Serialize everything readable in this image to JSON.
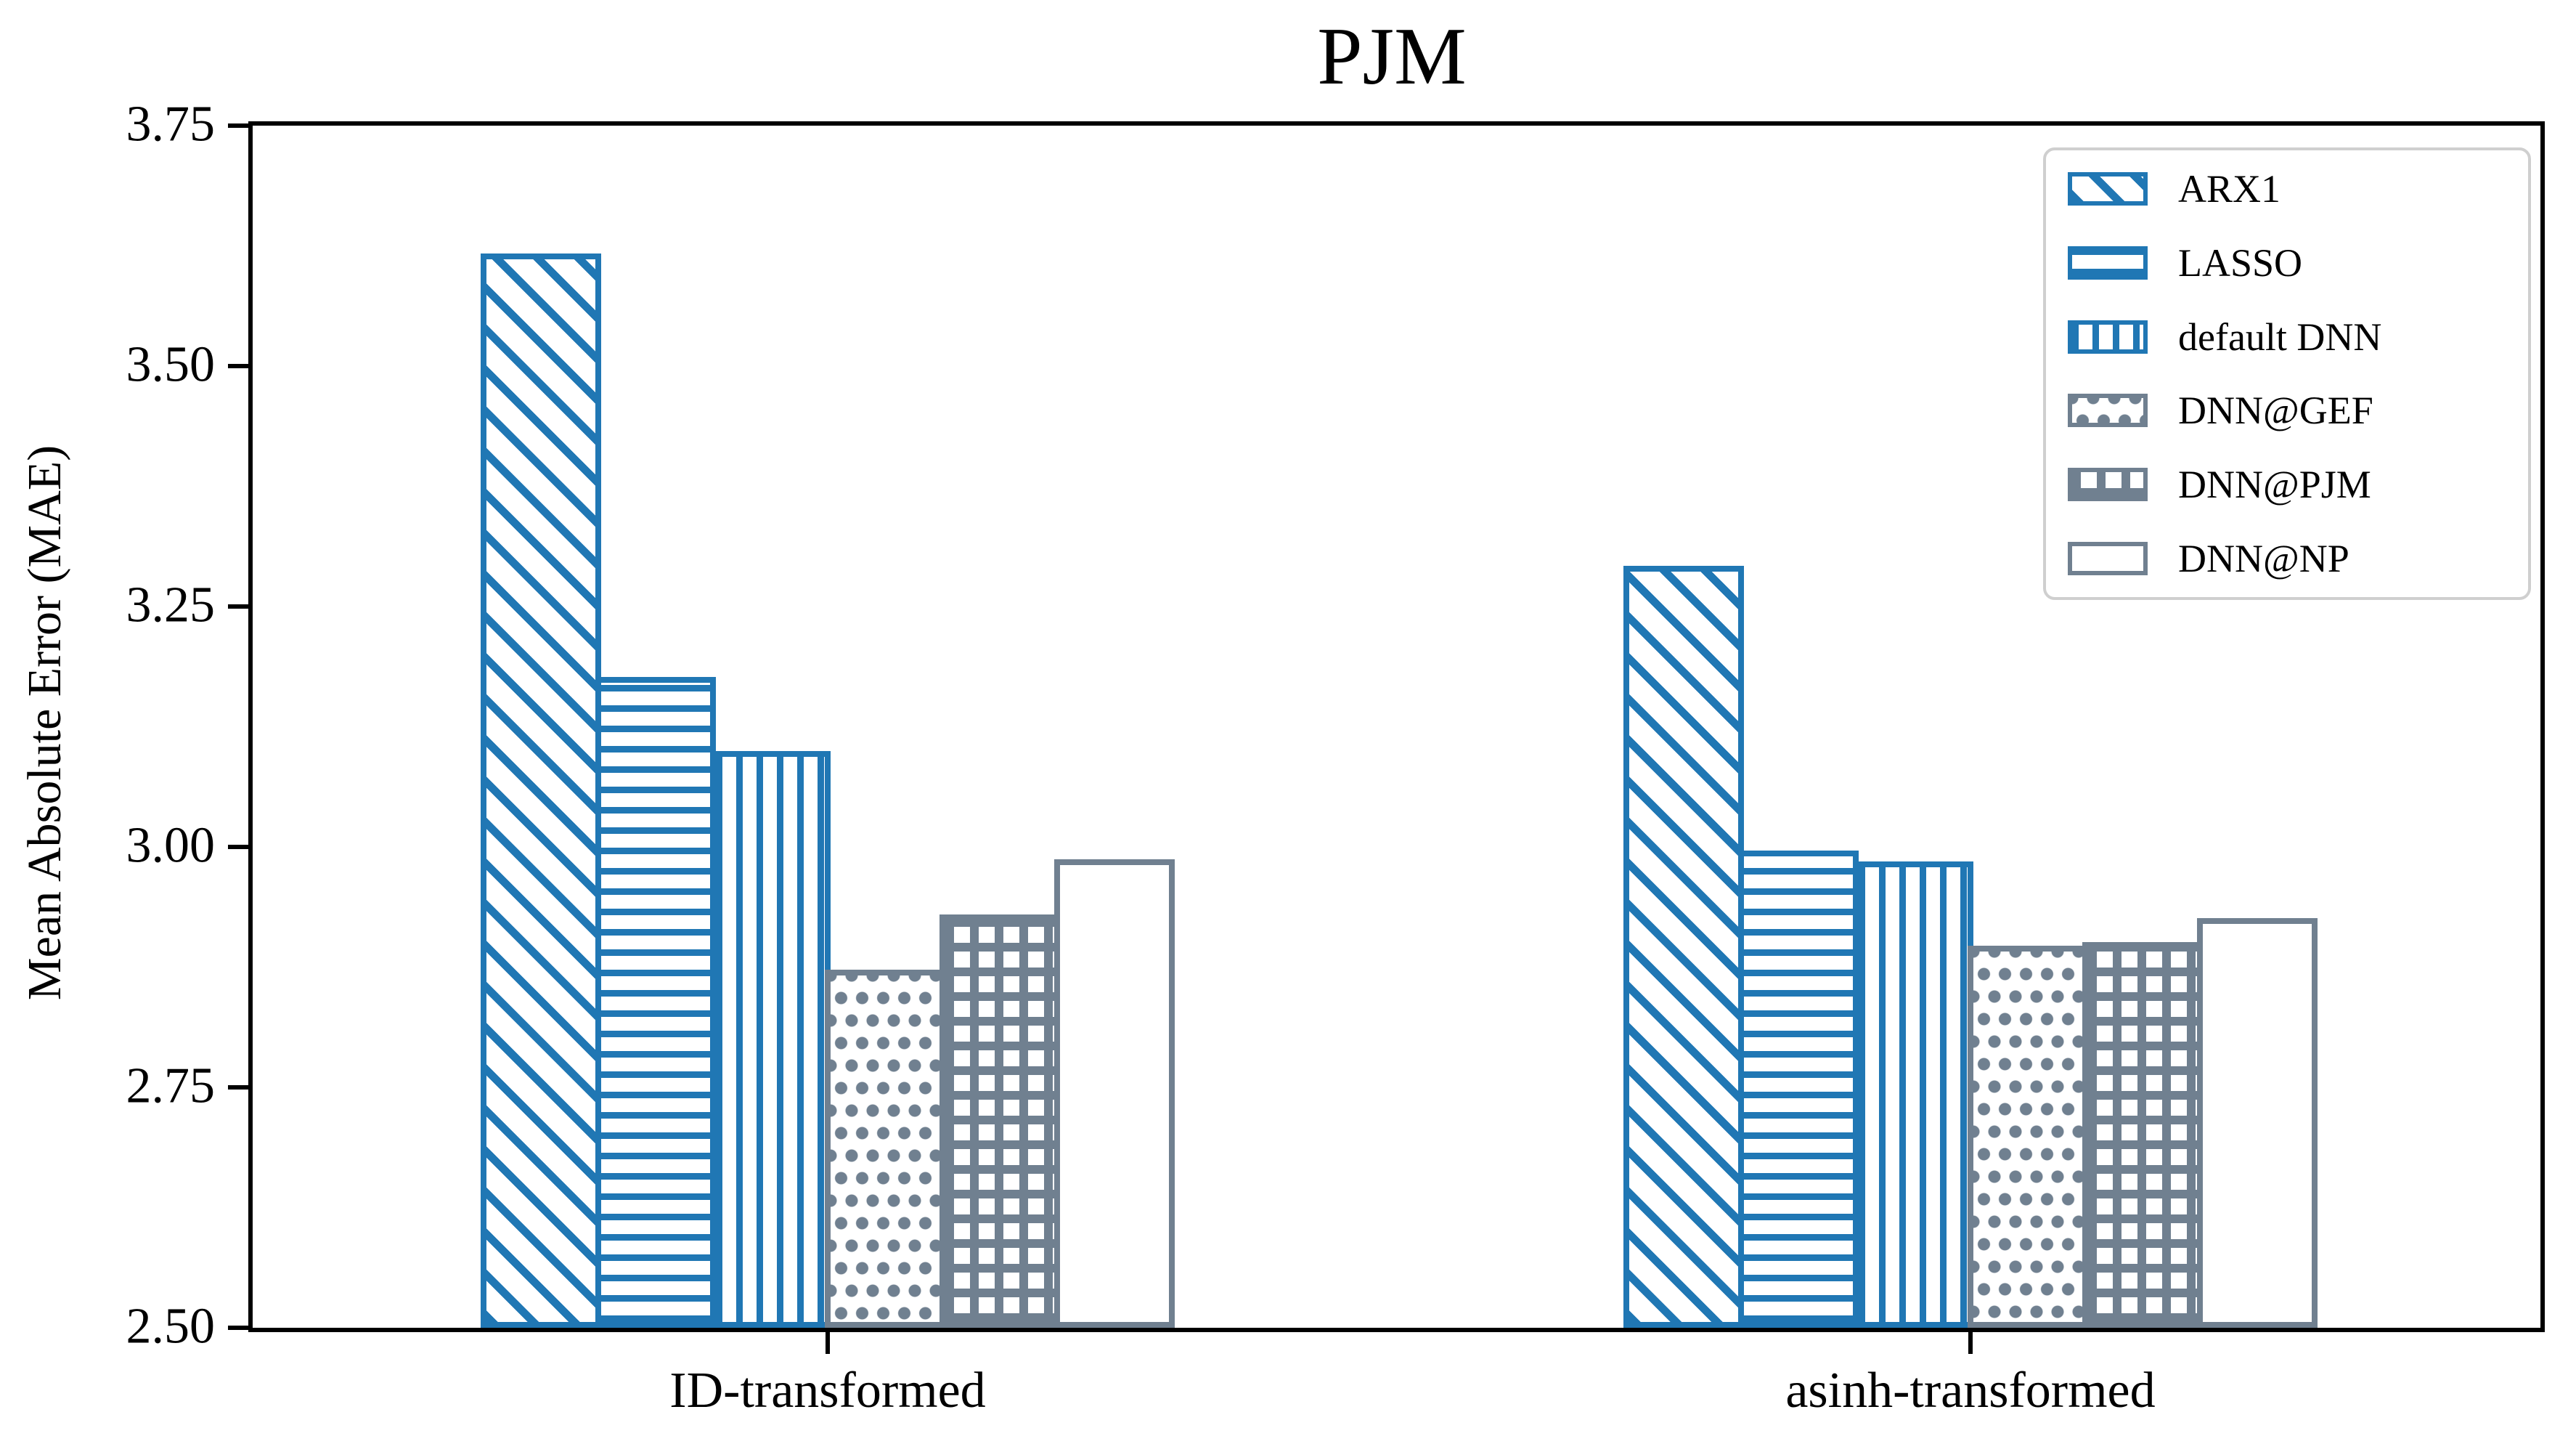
{
  "chart_data": {
    "type": "bar",
    "title": "PJM",
    "xlabel": "",
    "ylabel": "Mean Absolute Error (MAE)",
    "ylim": [
      2.5,
      3.75
    ],
    "yticks": [
      "2.50",
      "2.75",
      "3.00",
      "3.25",
      "3.50",
      "3.75"
    ],
    "categories": [
      "ID-transformed",
      "asinh-transformed"
    ],
    "series": [
      {
        "name": "ARX1",
        "color": "#2077b4",
        "hatch": "diagonal",
        "values": [
          3.617,
          3.292
        ]
      },
      {
        "name": "LASSO",
        "color": "#2077b4",
        "hatch": "horizontal",
        "values": [
          3.177,
          2.996
        ]
      },
      {
        "name": "default DNN",
        "color": "#2077b4",
        "hatch": "vertical",
        "values": [
          3.1,
          2.985
        ]
      },
      {
        "name": "DNN@GEF",
        "color": "#708090",
        "hatch": "dots",
        "values": [
          2.872,
          2.897
        ]
      },
      {
        "name": "DNN@PJM",
        "color": "#708090",
        "hatch": "grid",
        "values": [
          2.93,
          2.901
        ]
      },
      {
        "name": "DNN@NP",
        "color": "#708090",
        "hatch": "none",
        "values": [
          2.987,
          2.926
        ]
      }
    ],
    "legend_position": "upper right",
    "grid": false
  }
}
